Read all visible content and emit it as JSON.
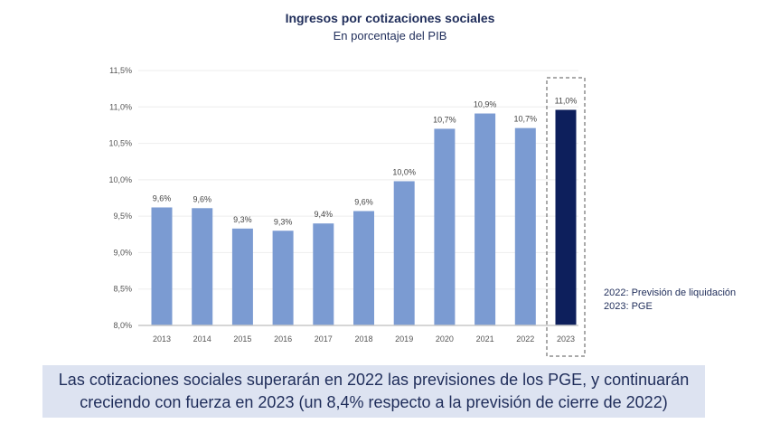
{
  "chart_data": {
    "type": "bar",
    "title": "Ingresos por cotizaciones sociales",
    "subtitle": "En porcentaje del PIB",
    "categories": [
      "2013",
      "2014",
      "2015",
      "2016",
      "2017",
      "2018",
      "2019",
      "2020",
      "2021",
      "2022",
      "2023"
    ],
    "values": [
      9.62,
      9.61,
      9.33,
      9.3,
      9.4,
      9.57,
      9.98,
      10.7,
      10.91,
      10.71,
      10.96
    ],
    "data_labels": [
      "9,6%",
      "9,6%",
      "9,3%",
      "9,3%",
      "9,4%",
      "9,6%",
      "10,0%",
      "10,7%",
      "10,9%",
      "10,7%",
      "11,0%"
    ],
    "ylim": [
      8.0,
      11.5
    ],
    "yticks": [
      8.0,
      8.5,
      9.0,
      9.5,
      10.0,
      10.5,
      11.0,
      11.5
    ],
    "ytick_labels": [
      "8,0%",
      "8,5%",
      "9,0%",
      "9,5%",
      "10,0%",
      "10,5%",
      "11,0%",
      "11,5%"
    ],
    "grid": true,
    "highlighted_category": "2023",
    "colors": {
      "bar": "#7b9bd2",
      "highlight": "#0d1f5c"
    }
  },
  "notes": [
    "2022: Previsión de liquidación",
    "2023: PGE"
  ],
  "callout": {
    "line1": "Las cotizaciones sociales superarán en 2022 las previsiones de los PGE, y continuarán",
    "line2": "creciendo con fuerza en 2023 (un 8,4% respecto a la previsión de cierre de 2022)"
  }
}
